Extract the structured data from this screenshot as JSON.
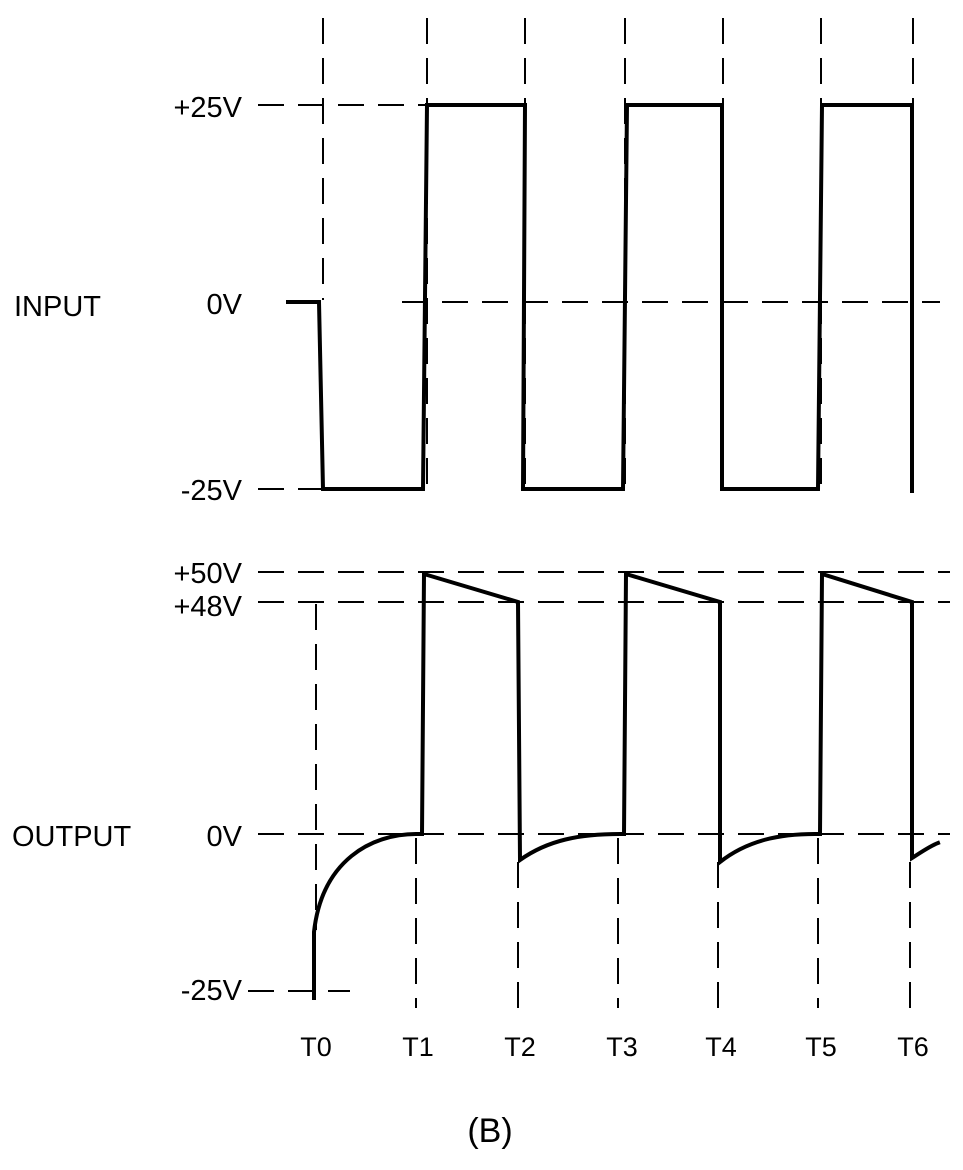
{
  "input_panel": {
    "label": "INPUT",
    "levels": [
      "+25V",
      "0V",
      "-25V"
    ]
  },
  "output_panel": {
    "label": "OUTPUT",
    "levels": [
      "+50V",
      "+48V",
      "0V",
      "-25V"
    ]
  },
  "time_labels": [
    "T0",
    "T1",
    "T2",
    "T3",
    "T4",
    "T5",
    "T6"
  ],
  "caption": "(B)"
}
